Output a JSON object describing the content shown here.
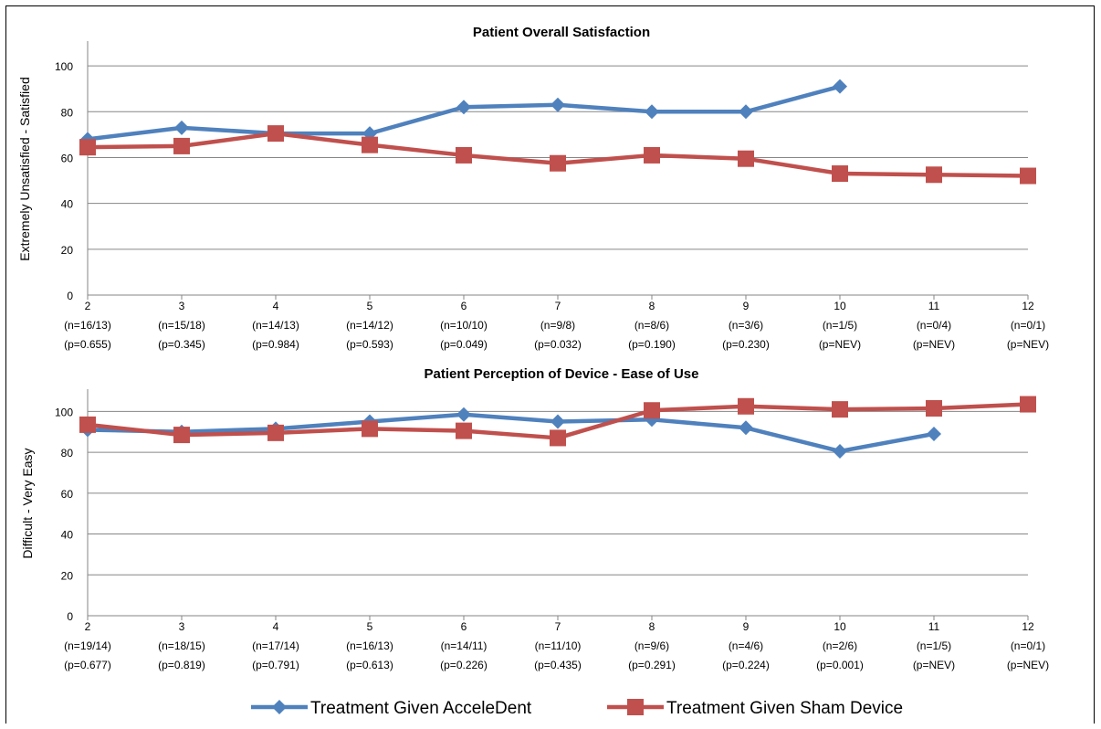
{
  "legend": {
    "accel_label": "Treatment Given AcceleDent",
    "sham_label": "Treatment Given Sham Device"
  },
  "colors": {
    "accel": "#4f81bd",
    "sham": "#c0504d",
    "grid": "#868686"
  },
  "chart_data": [
    {
      "type": "line",
      "title": "Patient Overall Satisfaction",
      "ylabel": "Extremely Unsatisfied - Satisfied",
      "ylim": [
        0,
        110
      ],
      "yticks": [
        0,
        20,
        40,
        60,
        80,
        100
      ],
      "grid": true,
      "legend_position": "bottom",
      "categories": [
        "2",
        "3",
        "4",
        "5",
        "6",
        "7",
        "8",
        "9",
        "10",
        "11",
        "12"
      ],
      "n_labels": [
        "(n=16/13)",
        "(n=15/18)",
        "(n=14/13)",
        "(n=14/12)",
        "(n=10/10)",
        "(n=9/8)",
        "(n=8/6)",
        "(n=3/6)",
        "(n=1/5)",
        "(n=0/4)",
        "(n=0/1)"
      ],
      "p_labels": [
        "(p=0.655)",
        "(p=0.345)",
        "(p=0.984)",
        "(p=0.593)",
        "(p=0.049)",
        "(p=0.032)",
        "(p=0.190)",
        "(p=0.230)",
        "(p=NEV)",
        "(p=NEV)",
        "(p=NEV)"
      ],
      "series": [
        {
          "name": "Treatment Given AcceleDent",
          "values": [
            68,
            73,
            70.5,
            70.5,
            82,
            83,
            80,
            80,
            91,
            null,
            null
          ]
        },
        {
          "name": "Treatment Given Sham Device",
          "values": [
            64.5,
            65,
            70.5,
            65.5,
            61,
            57.5,
            61,
            59.5,
            53,
            52.5,
            52
          ]
        }
      ]
    },
    {
      "type": "line",
      "title": "Patient Perception of Device - Ease of Use",
      "ylabel": "Difficult - Very Easy",
      "ylim": [
        0,
        110
      ],
      "yticks": [
        0,
        20,
        40,
        60,
        80,
        100
      ],
      "grid": true,
      "legend_position": "bottom",
      "categories": [
        "2",
        "3",
        "4",
        "5",
        "6",
        "7",
        "8",
        "9",
        "10",
        "11",
        "12"
      ],
      "n_labels": [
        "(n=19/14)",
        "(n=18/15)",
        "(n=17/14)",
        "(n=16/13)",
        "(n=14/11)",
        "(n=11/10)",
        "(n=9/6)",
        "(n=4/6)",
        "(n=2/6)",
        "(n=1/5)",
        "(n=0/1)"
      ],
      "p_labels": [
        "(p=0.677)",
        "(p=0.819)",
        "(p=0.791)",
        "(p=0.613)",
        "(p=0.226)",
        "(p=0.435)",
        "(p=0.291)",
        "(p=0.224)",
        "(p=0.001)",
        "(p=NEV)",
        "(p=NEV)"
      ],
      "series": [
        {
          "name": "Treatment Given AcceleDent",
          "values": [
            91,
            90,
            91.5,
            95,
            98.5,
            95,
            96,
            92,
            80.5,
            89,
            null
          ]
        },
        {
          "name": "Treatment Given Sham Device",
          "values": [
            93.5,
            88.5,
            89.5,
            91.5,
            90.5,
            87,
            100.5,
            102.5,
            101,
            101.5,
            103.5
          ]
        }
      ]
    }
  ]
}
